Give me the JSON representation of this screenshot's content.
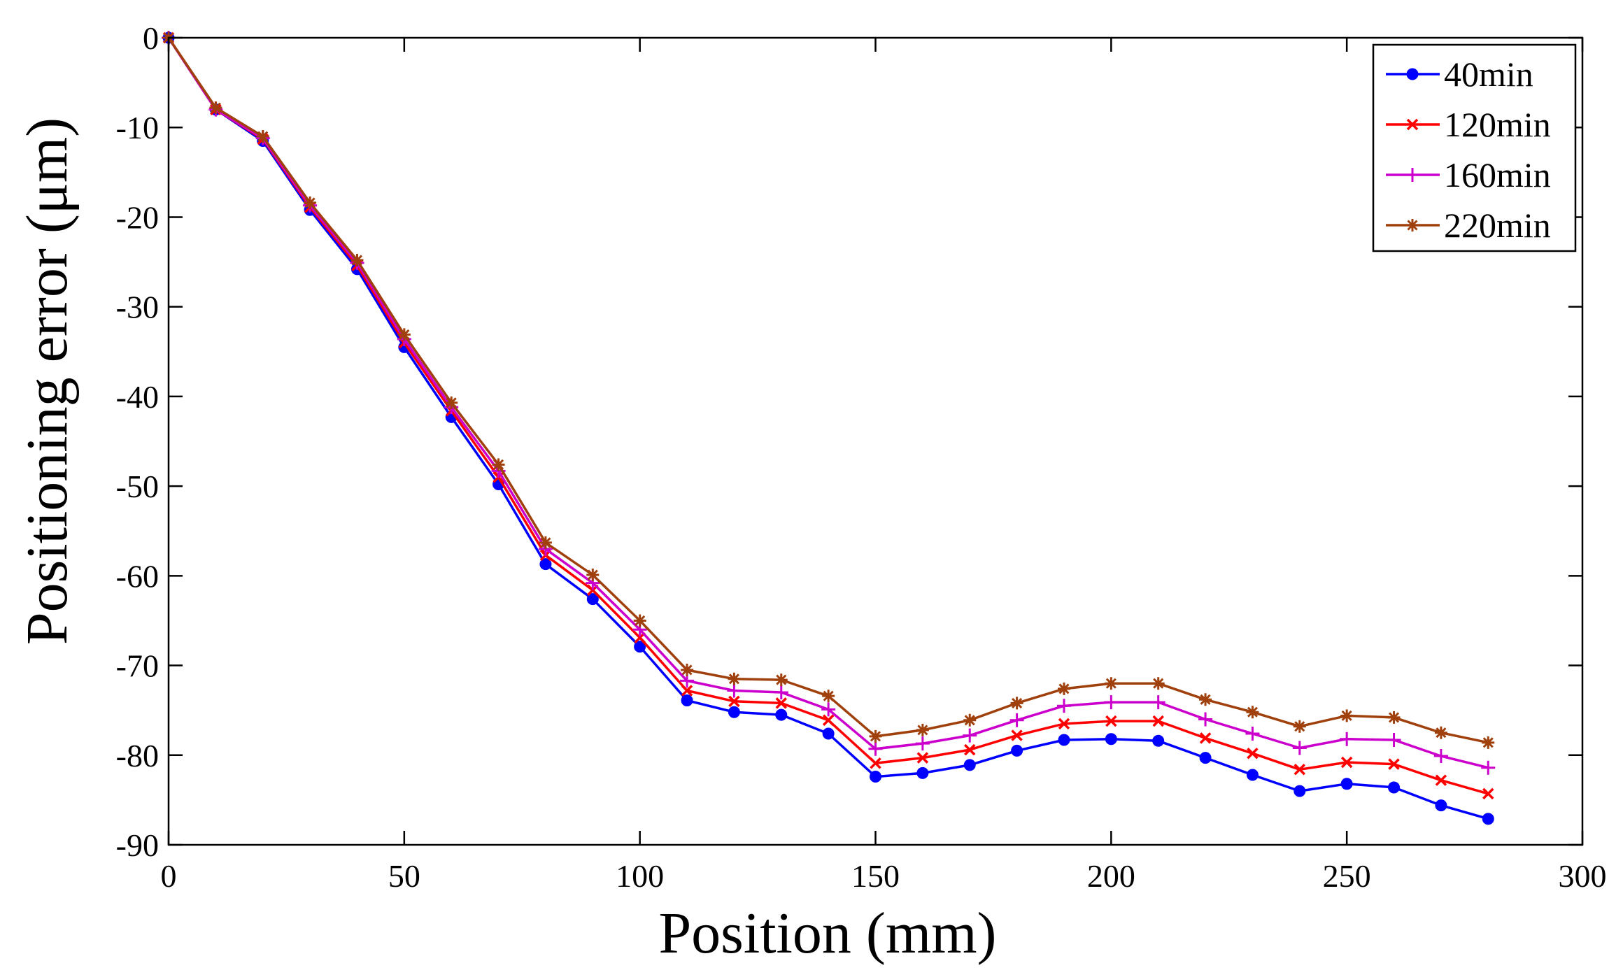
{
  "chart_data": {
    "type": "line",
    "title": "",
    "xlabel": "Position (mm)",
    "ylabel": "Positioning error (μm)",
    "xlim": [
      0,
      300
    ],
    "ylim": [
      -90,
      0
    ],
    "xticks": [
      0,
      50,
      100,
      150,
      200,
      250,
      300
    ],
    "yticks": [
      0,
      -10,
      -20,
      -30,
      -40,
      -50,
      -60,
      -70,
      -80,
      -90
    ],
    "grid": false,
    "legend_position": "top-right",
    "x": [
      0,
      10,
      20,
      30,
      40,
      50,
      60,
      70,
      80,
      90,
      100,
      110,
      120,
      130,
      140,
      150,
      160,
      170,
      180,
      190,
      200,
      210,
      220,
      230,
      240,
      250,
      260,
      270,
      280
    ],
    "series": [
      {
        "name": "40min",
        "color": "#0000ff",
        "marker": "dot",
        "values": [
          0,
          -8,
          -11.5,
          -19.2,
          -25.8,
          -34.5,
          -42.3,
          -49.8,
          -58.7,
          -62.6,
          -67.9,
          -73.9,
          -75.2,
          -75.5,
          -77.6,
          -82.4,
          -82.0,
          -81.1,
          -79.5,
          -78.3,
          -78.2,
          -78.4,
          -80.3,
          -82.2,
          -84.0,
          -83.2,
          -83.6,
          -85.6,
          -87.1
        ]
      },
      {
        "name": "120min",
        "color": "#ff0000",
        "marker": "x",
        "values": [
          0,
          -8,
          -11.3,
          -18.9,
          -25.4,
          -34.0,
          -41.6,
          -49.0,
          -57.7,
          -61.6,
          -66.9,
          -72.8,
          -74.0,
          -74.2,
          -76.1,
          -80.9,
          -80.3,
          -79.4,
          -77.8,
          -76.5,
          -76.2,
          -76.2,
          -78.1,
          -79.8,
          -81.6,
          -80.8,
          -81.0,
          -82.8,
          -84.3
        ]
      },
      {
        "name": "160min",
        "color": "#cc00cc",
        "marker": "plus",
        "values": [
          0,
          -8,
          -11.2,
          -18.7,
          -25.1,
          -33.6,
          -41.2,
          -48.3,
          -57.0,
          -60.8,
          -66.0,
          -71.7,
          -72.8,
          -73.0,
          -74.9,
          -79.3,
          -78.7,
          -77.8,
          -76.1,
          -74.5,
          -74.1,
          -74.1,
          -76.0,
          -77.6,
          -79.2,
          -78.2,
          -78.3,
          -80.1,
          -81.4
        ]
      },
      {
        "name": "220min",
        "color": "#a0400d",
        "marker": "star",
        "values": [
          0,
          -7.8,
          -11.0,
          -18.4,
          -24.8,
          -33.1,
          -40.7,
          -47.6,
          -56.3,
          -59.9,
          -65.0,
          -70.5,
          -71.5,
          -71.6,
          -73.4,
          -77.9,
          -77.2,
          -76.1,
          -74.2,
          -72.6,
          -72.0,
          -72.0,
          -73.8,
          -75.2,
          -76.8,
          -75.6,
          -75.8,
          -77.5,
          -78.6
        ]
      }
    ]
  }
}
